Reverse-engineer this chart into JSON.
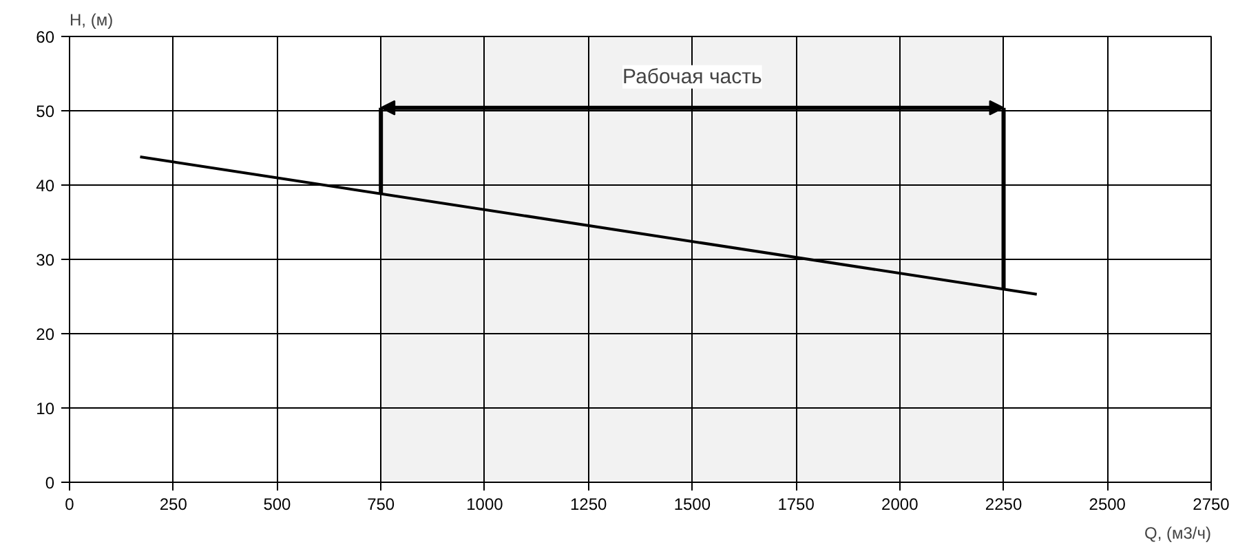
{
  "chart_data": {
    "type": "line",
    "xlabel": "Q, (м3/ч)",
    "ylabel": "H, (м)",
    "x": [
      170,
      2330
    ],
    "series": [
      {
        "color": "#000000",
        "values": [
          43.8,
          25.3
        ]
      }
    ],
    "xlim": [
      0,
      2750
    ],
    "xticks": [
      0,
      250,
      500,
      750,
      1000,
      1250,
      1500,
      1750,
      2000,
      2250,
      2500,
      2750
    ],
    "ylim": [
      0,
      60
    ],
    "yticks": [
      0,
      10,
      20,
      30,
      40,
      50,
      60
    ],
    "grid": true,
    "bands": [
      {
        "axis": "x",
        "from": 750,
        "to": 2250,
        "color": "#000000",
        "label": "Рабочая часть"
      }
    ]
  }
}
